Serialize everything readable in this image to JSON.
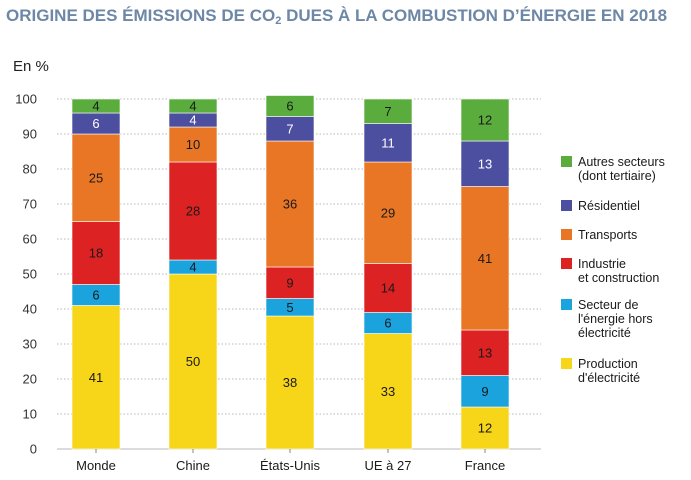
{
  "chart_data": {
    "type": "bar",
    "stacked": true,
    "title_main": "ORIGINE DES ÉMISSIONS DE CO",
    "title_sub": "2",
    "title_rest": " DUES À LA COMBUSTION D’ÉNERGIE EN 2018",
    "ylabel": "En %",
    "ylim": [
      0,
      100
    ],
    "yticks": [
      "0",
      "10",
      "20",
      "30",
      "40",
      "50",
      "60",
      "70",
      "80",
      "90",
      "100"
    ],
    "grid": true,
    "legend_position": "right",
    "categories": [
      "Monde",
      "Chine",
      "États-Unis",
      "UE à 27",
      "France"
    ],
    "series": [
      {
        "name": "Production d'électricité",
        "legend_lines": [
          "Production",
          "d'électricité"
        ],
        "color": "#f7d619",
        "values": [
          41,
          50,
          38,
          33,
          12
        ]
      },
      {
        "name": "Secteur de l'énergie hors électricité",
        "legend_lines": [
          "Secteur de",
          "l'énergie hors",
          "électricité"
        ],
        "color": "#1aa3dd",
        "values": [
          6,
          4,
          5,
          6,
          9
        ]
      },
      {
        "name": "Industrie et construction",
        "legend_lines": [
          "Industrie",
          "et construction"
        ],
        "color": "#dc2222",
        "values": [
          18,
          28,
          9,
          14,
          13
        ]
      },
      {
        "name": "Transports",
        "legend_lines": [
          "Transports"
        ],
        "color": "#e97624",
        "values": [
          25,
          10,
          36,
          29,
          41
        ]
      },
      {
        "name": "Résidentiel",
        "legend_lines": [
          "Résidentiel"
        ],
        "color": "#4c4ea0",
        "values": [
          6,
          4,
          7,
          11,
          13
        ]
      },
      {
        "name": "Autres secteurs (dont tertiaire)",
        "legend_lines": [
          "Autres secteurs",
          "(dont tertiaire)"
        ],
        "color": "#5aad3c",
        "values": [
          4,
          4,
          6,
          7,
          12
        ]
      }
    ]
  }
}
